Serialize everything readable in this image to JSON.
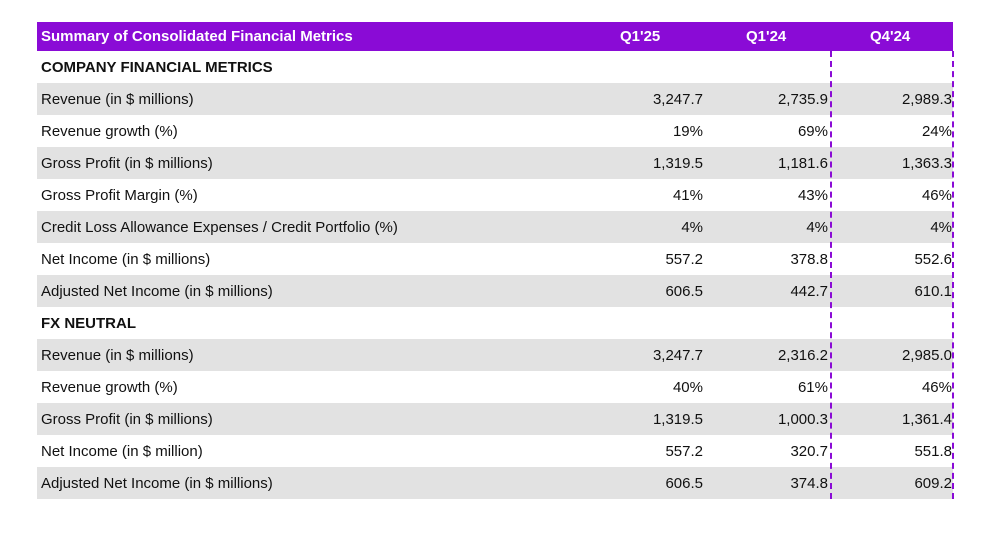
{
  "table": {
    "title": "Summary of Consolidated Financial Metrics",
    "columns": [
      "Q1'25",
      "Q1'24",
      "Q4'24"
    ],
    "accent_color": "#8a0bd6",
    "stripe_color": "#e2e2e2",
    "sections": [
      {
        "heading": "COMPANY FINANCIAL METRICS",
        "rows": [
          {
            "label": "Revenue (in $ millions)",
            "values": [
              "3,247.7",
              "2,735.9",
              "2,989.3"
            ]
          },
          {
            "label": "Revenue growth (%)",
            "values": [
              "19%",
              "69%",
              "24%"
            ]
          },
          {
            "label": "Gross Profit (in $ millions)",
            "values": [
              "1,319.5",
              "1,181.6",
              "1,363.3"
            ]
          },
          {
            "label": "Gross Profit Margin (%)",
            "values": [
              "41%",
              "43%",
              "46%"
            ]
          },
          {
            "label": "Credit Loss Allowance Expenses / Credit Portfolio (%)",
            "values": [
              "4%",
              "4%",
              "4%"
            ]
          },
          {
            "label": "Net Income (in $ millions)",
            "values": [
              "557.2",
              "378.8",
              "552.6"
            ]
          },
          {
            "label": "Adjusted Net Income (in $ millions)",
            "values": [
              "606.5",
              "442.7",
              "610.1"
            ]
          }
        ]
      },
      {
        "heading": "FX NEUTRAL",
        "rows": [
          {
            "label": "Revenue (in $ millions)",
            "values": [
              "3,247.7",
              "2,316.2",
              "2,985.0"
            ]
          },
          {
            "label": "Revenue growth (%)",
            "values": [
              "40%",
              "61%",
              "46%"
            ]
          },
          {
            "label": "Gross Profit (in $ millions)",
            "values": [
              "1,319.5",
              "1,000.3",
              "1,361.4"
            ]
          },
          {
            "label": "Net Income (in $ million)",
            "values": [
              "557.2",
              "320.7",
              "551.8"
            ]
          },
          {
            "label": "Adjusted Net Income (in $ millions)",
            "values": [
              "606.5",
              "374.8",
              "609.2"
            ]
          }
        ]
      }
    ]
  }
}
